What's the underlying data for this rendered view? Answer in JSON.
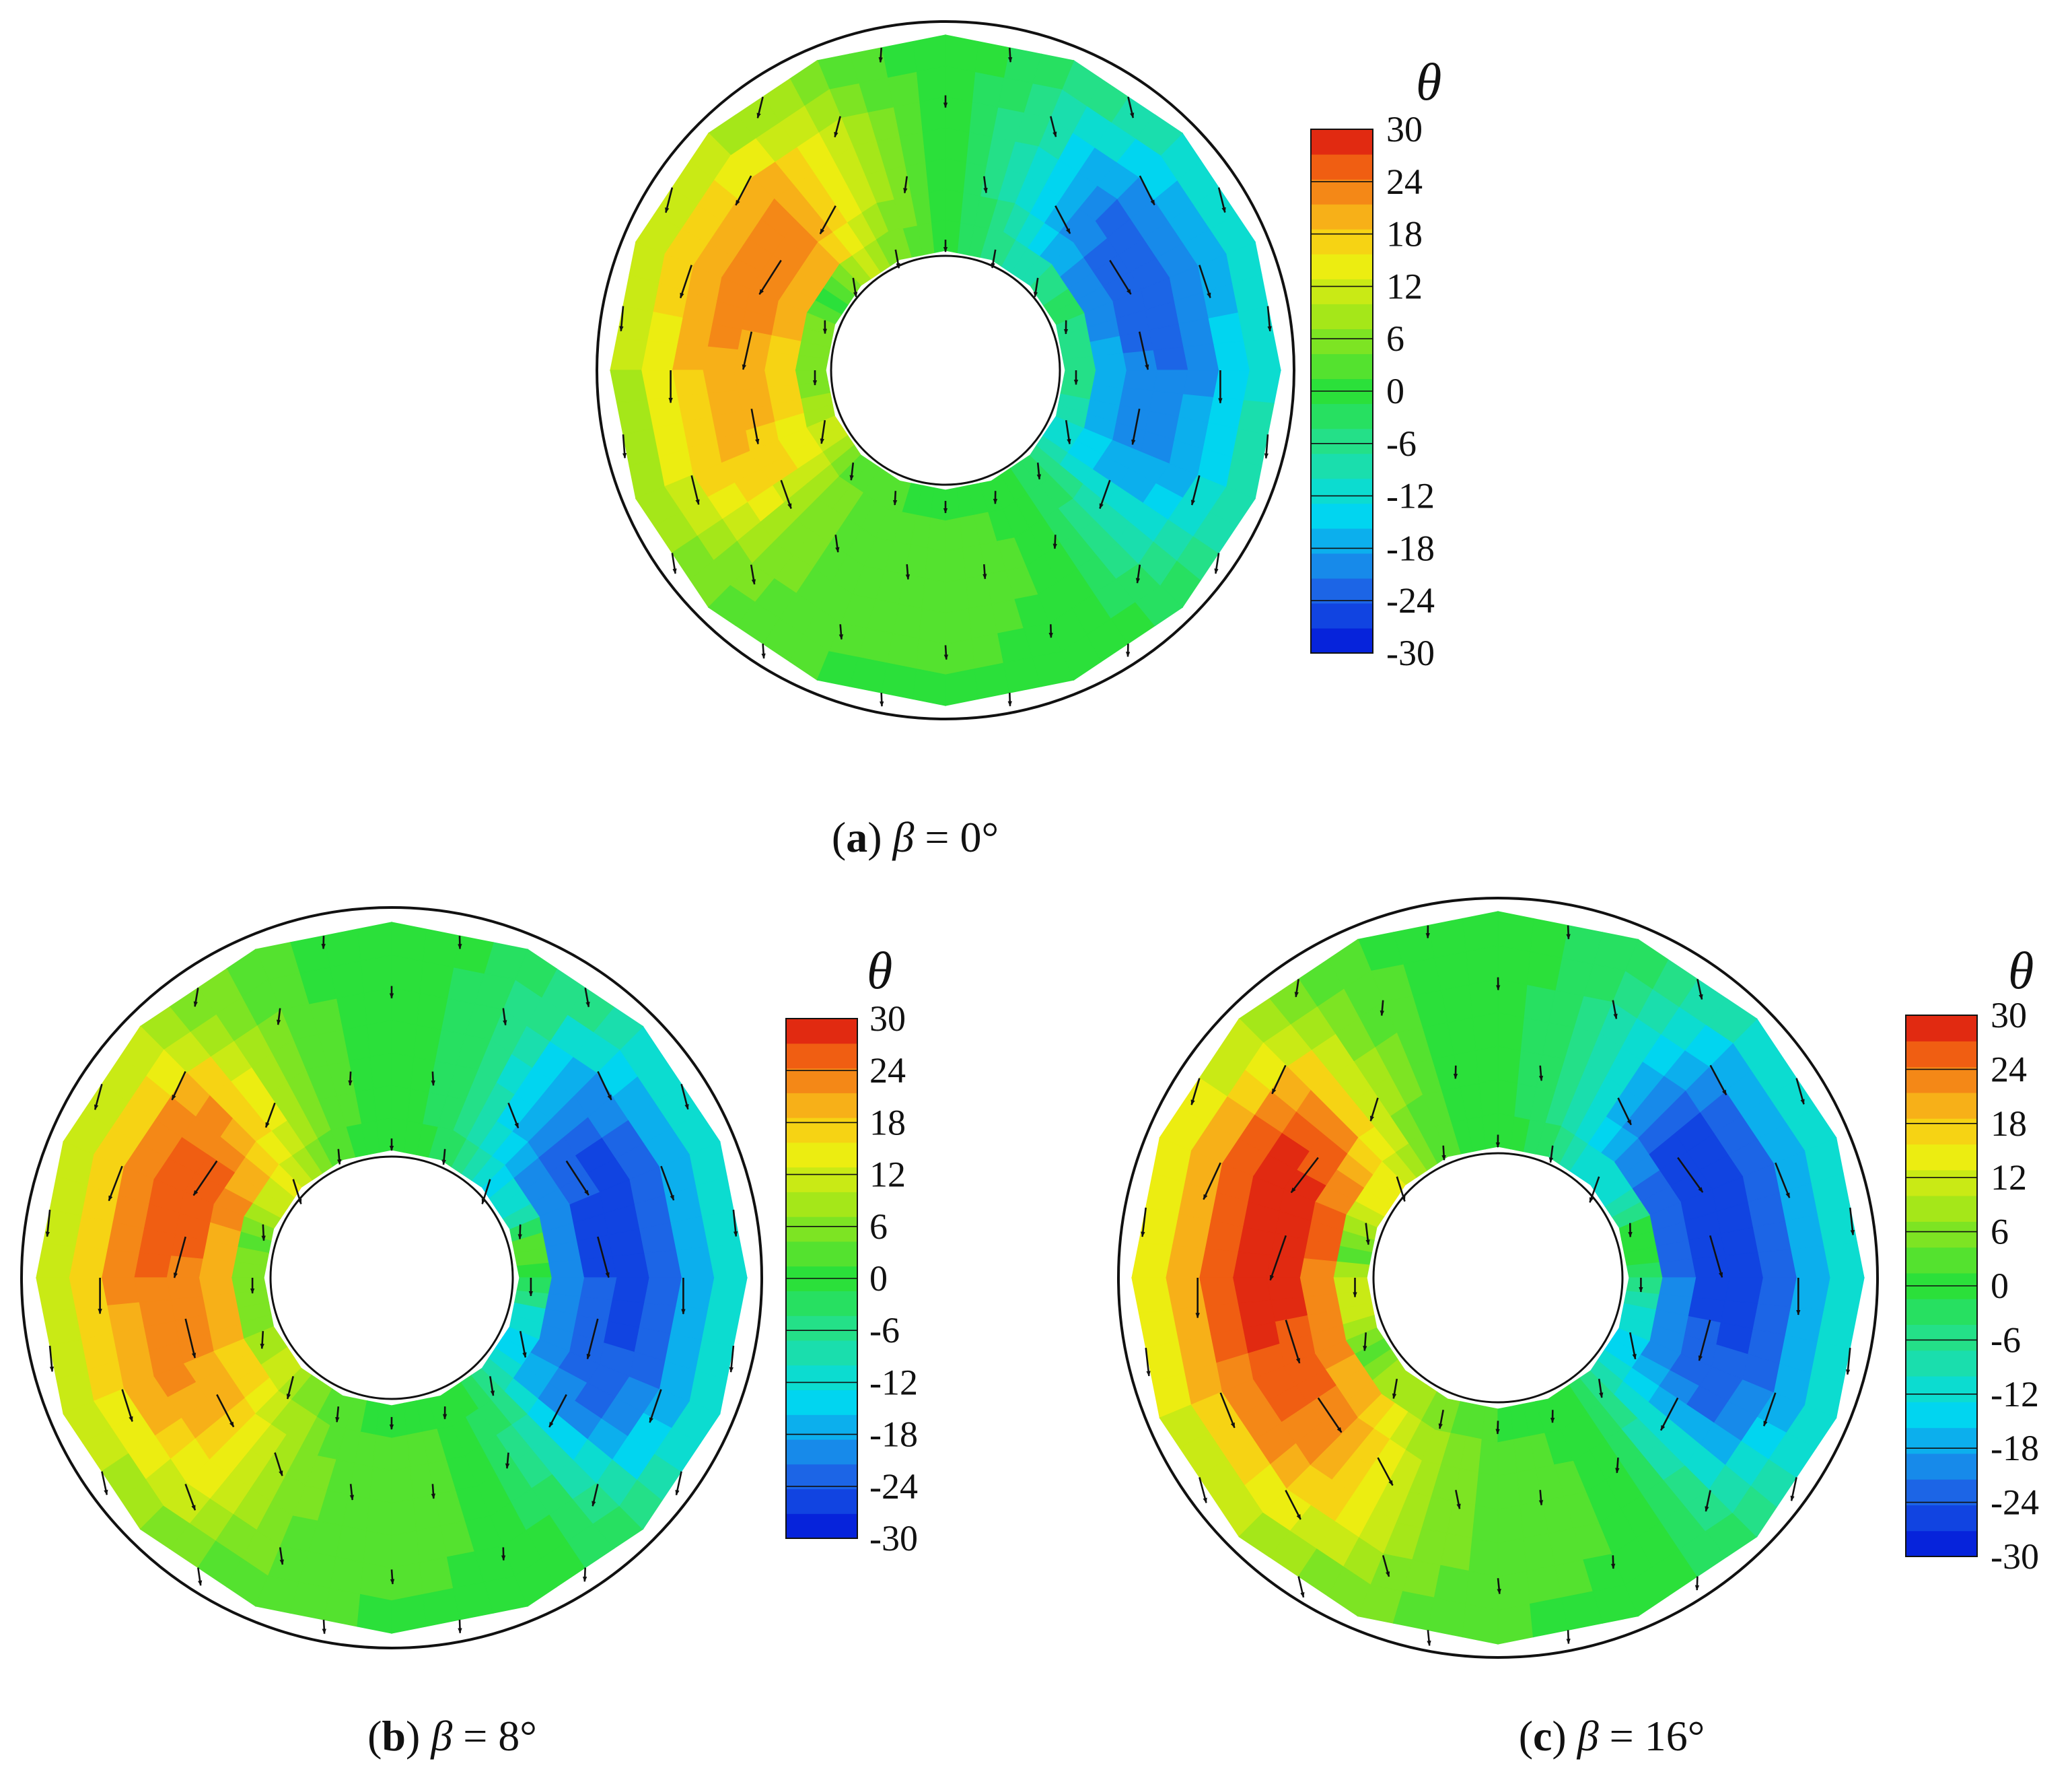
{
  "colorbar": {
    "label": "θ",
    "ticks": [
      "30",
      "24",
      "18",
      "12",
      "6",
      "0",
      "-6",
      "-12",
      "-18",
      "-24",
      "-30"
    ],
    "min": -30,
    "max": 30,
    "levels": 21
  },
  "palette": {
    "stops": [
      "#0012d8",
      "#1f6fe8",
      "#00d9f0",
      "#22e09a",
      "#2be03a",
      "#9ee61a",
      "#f5ee10",
      "#f7a31a",
      "#f05a12",
      "#d81010"
    ],
    "stop_values": [
      -30,
      -22,
      -14,
      -7,
      0,
      8,
      15,
      21,
      26,
      30
    ],
    "outline": "#111111",
    "arrow": "#111111"
  },
  "panels": [
    {
      "letter": "a",
      "caption_paren_open": "(",
      "caption_paren_close": ")",
      "caption_symbol": "β",
      "caption_eq": " = ",
      "caption_value": "0°"
    },
    {
      "letter": "b",
      "caption_paren_open": "(",
      "caption_paren_close": ")",
      "caption_symbol": "β",
      "caption_eq": " = ",
      "caption_value": "8°"
    },
    {
      "letter": "c",
      "caption_paren_open": "(",
      "caption_paren_close": ")",
      "caption_symbol": "β",
      "caption_eq": " = ",
      "caption_value": "16°"
    }
  ],
  "chart_data": [
    {
      "type": "heatmap",
      "title": "",
      "panel": "(a) β = 0°",
      "quantity": "θ",
      "beta_deg": 0,
      "grid": "polar annulus, 16 sectors",
      "value_range": [
        -30,
        30
      ],
      "vector_field": true,
      "features": [
        {
          "angle_deg": 150,
          "theta": 25
        },
        {
          "angle_deg": 30,
          "theta": -24
        },
        {
          "angle_deg": 180,
          "theta": 15
        },
        {
          "angle_deg": 0,
          "theta": -16
        },
        {
          "angle_deg": 90,
          "theta": 0
        },
        {
          "angle_deg": 270,
          "theta": 2
        }
      ]
    },
    {
      "type": "heatmap",
      "title": "",
      "panel": "(b) β = 8°",
      "quantity": "θ",
      "beta_deg": 8,
      "grid": "polar annulus, 16 sectors",
      "value_range": [
        -30,
        30
      ],
      "vector_field": true,
      "features": [
        {
          "angle_deg": 165,
          "theta": 25
        },
        {
          "angle_deg": 15,
          "theta": -24
        },
        {
          "angle_deg": 195,
          "theta": 18
        },
        {
          "angle_deg": 0,
          "theta": -20
        },
        {
          "angle_deg": 90,
          "theta": 0
        },
        {
          "angle_deg": 270,
          "theta": 2
        }
      ]
    },
    {
      "type": "heatmap",
      "title": "",
      "panel": "(c) β = 16°",
      "quantity": "θ",
      "beta_deg": 16,
      "grid": "polar annulus, 16 sectors",
      "value_range": [
        -30,
        30
      ],
      "vector_field": true,
      "features": [
        {
          "angle_deg": 170,
          "theta": 27
        },
        {
          "angle_deg": 20,
          "theta": -26
        },
        {
          "angle_deg": 210,
          "theta": 22
        },
        {
          "angle_deg": 0,
          "theta": -20
        },
        {
          "angle_deg": 90,
          "theta": 0
        },
        {
          "angle_deg": 270,
          "theta": 2
        }
      ]
    }
  ]
}
